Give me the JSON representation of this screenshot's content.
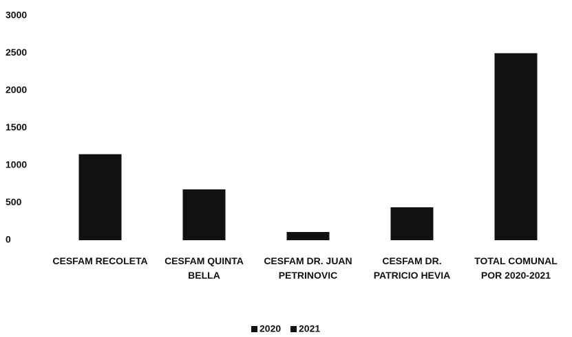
{
  "chart_data": {
    "type": "bar",
    "stacked": true,
    "categories": [
      "CESFAM RECOLETA",
      "CESFAM QUINTA BELLA",
      "CESFAM DR. JUAN PETRINOVIC",
      "CESFAM DR. PATRICIO HEVIA",
      "TOTAL COMUNAL POR 2020-2021"
    ],
    "series": [
      {
        "name": "2020",
        "color": "#111111",
        "values": [
          1150,
          680,
          110,
          440,
          2500
        ]
      },
      {
        "name": "2021",
        "color": "#111111",
        "values": [
          null,
          null,
          null,
          null,
          null
        ]
      }
    ],
    "ylim": [
      0,
      3000
    ],
    "yticks": [
      0,
      500,
      1000,
      1500,
      2000,
      2500,
      3000
    ],
    "grid": false,
    "legend": "bottom"
  }
}
